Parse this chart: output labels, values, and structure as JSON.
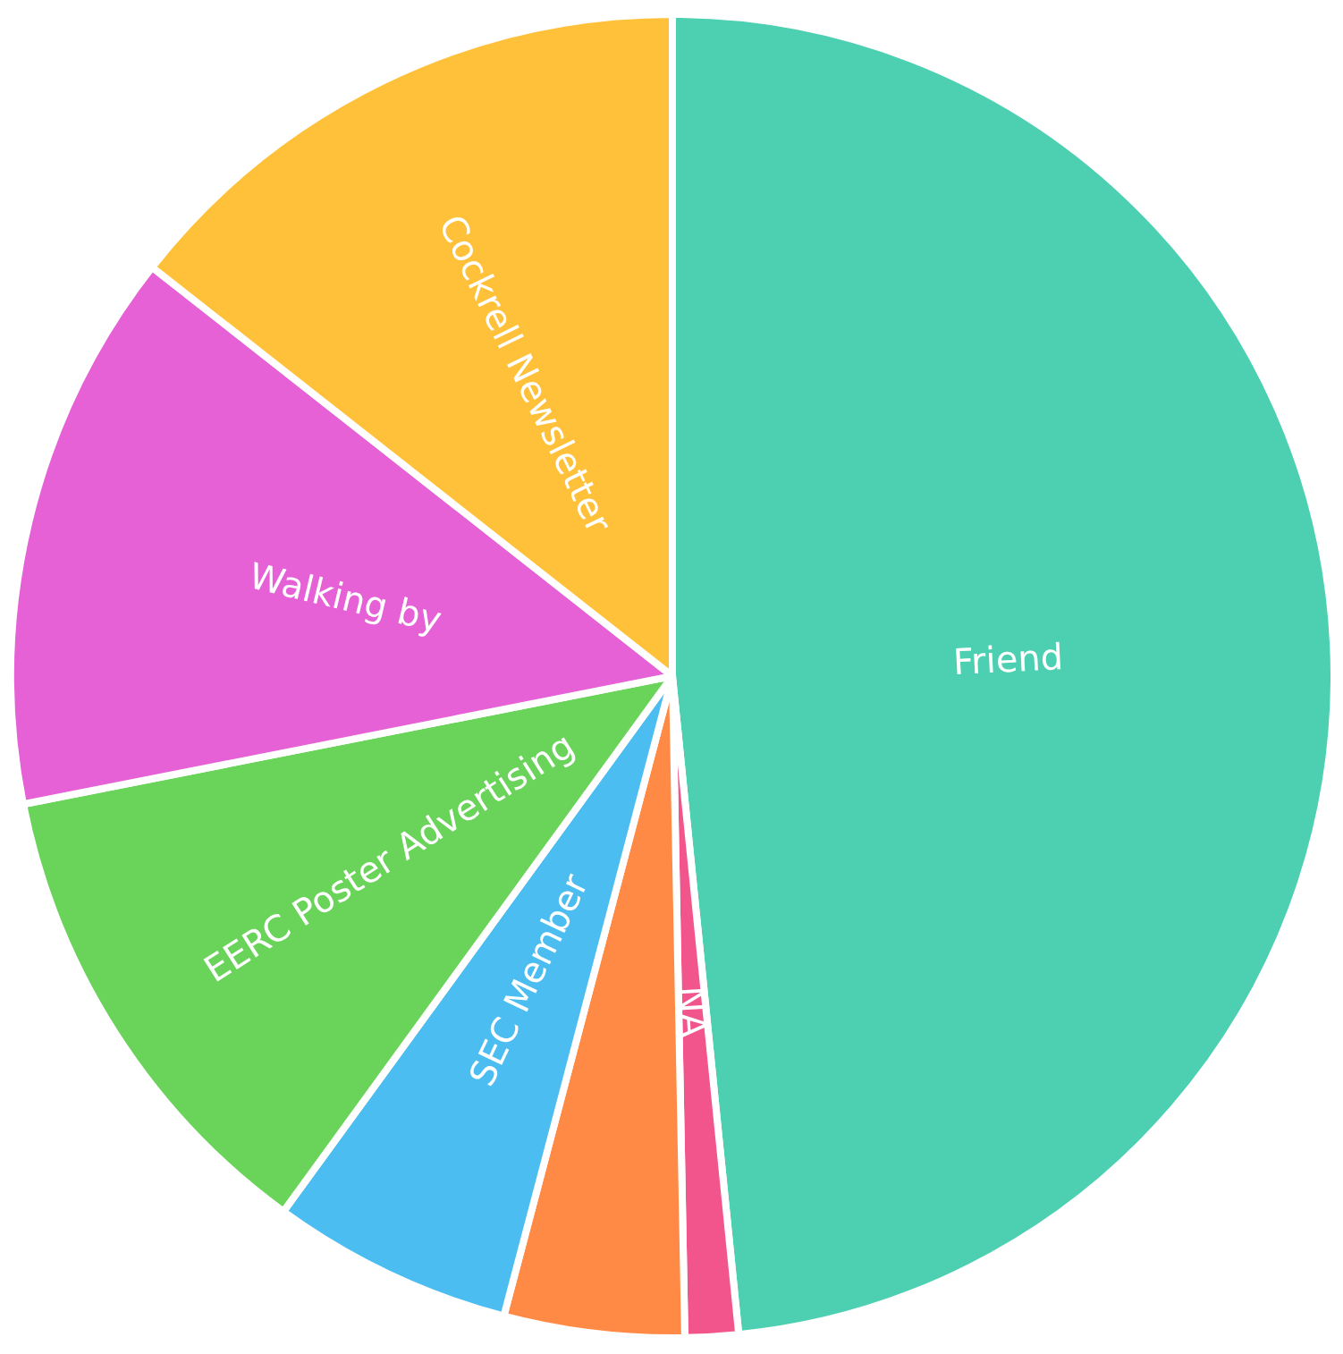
{
  "chart_data": {
    "type": "pie",
    "categories": [
      "Friend",
      "NA",
      null,
      "SEC Member",
      "EERC Poster Advertising",
      "Walking by",
      "Cockrell Newsletter"
    ],
    "values": [
      48.4,
      1.3,
      4.4,
      5.9,
      11.9,
      13.7,
      14.4
    ],
    "colors": [
      "#4dd0b1",
      "#f2558c",
      "#ff8a45",
      "#4cbdf0",
      "#6ad35a",
      "#e660d6",
      "#ffc13a"
    ],
    "legend": false
  }
}
